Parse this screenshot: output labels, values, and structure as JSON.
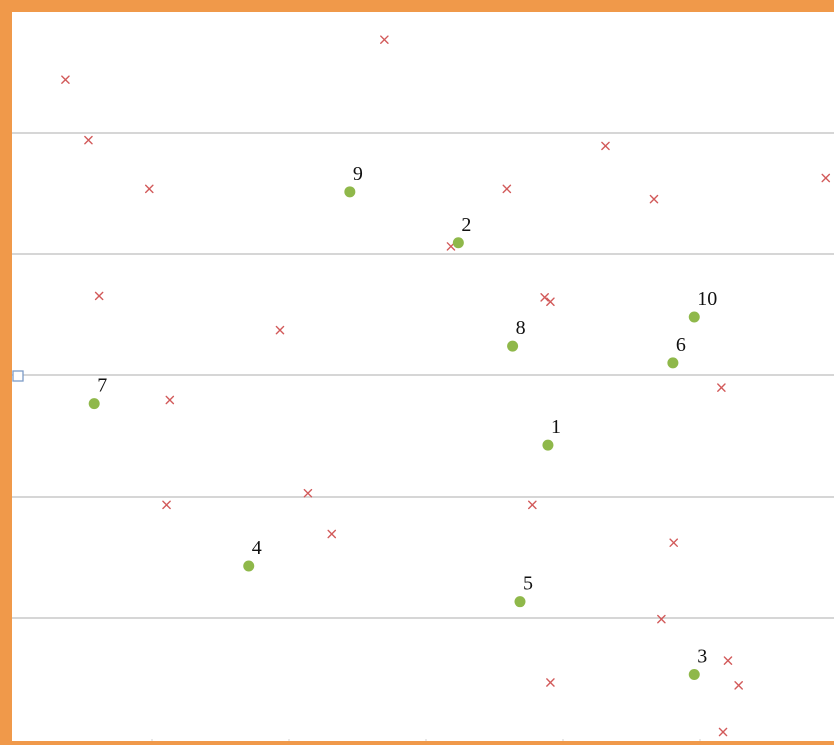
{
  "chart_data": {
    "type": "scatter",
    "title": "",
    "xlabel": "",
    "ylabel": "",
    "xlim": [
      0,
      100
    ],
    "ylim": [
      0,
      100
    ],
    "grid": true,
    "legend": "none",
    "colors": {
      "frame": "#f0994a",
      "grid": "#c9c9c9",
      "crosses": "#d25a5a",
      "points": "#8fb84a",
      "marker": "#7d9cc7"
    },
    "series": [
      {
        "marker": "circle",
        "points": [
          {
            "label": "1",
            "x": 65.2,
            "y": 40.5
          },
          {
            "label": "2",
            "x": 54.3,
            "y": 68.3
          },
          {
            "label": "3",
            "x": 83.0,
            "y": 9.0
          },
          {
            "label": "4",
            "x": 28.8,
            "y": 23.9
          },
          {
            "label": "5",
            "x": 61.8,
            "y": 19.0
          },
          {
            "label": "6",
            "x": 80.4,
            "y": 51.8
          },
          {
            "label": "7",
            "x": 10.0,
            "y": 46.2
          },
          {
            "label": "8",
            "x": 60.9,
            "y": 54.1
          },
          {
            "label": "9",
            "x": 41.1,
            "y": 75.3
          },
          {
            "label": "10",
            "x": 83.0,
            "y": 58.1
          }
        ]
      },
      {
        "marker": "x",
        "points": [
          {
            "x": 6.5,
            "y": 90.7
          },
          {
            "x": 9.3,
            "y": 82.4
          },
          {
            "x": 16.7,
            "y": 75.7
          },
          {
            "x": 45.3,
            "y": 96.2
          },
          {
            "x": 72.2,
            "y": 81.6
          },
          {
            "x": 60.2,
            "y": 75.7
          },
          {
            "x": 99.0,
            "y": 77.2
          },
          {
            "x": 78.1,
            "y": 74.3
          },
          {
            "x": 53.4,
            "y": 67.8
          },
          {
            "x": 10.6,
            "y": 61.0
          },
          {
            "x": 32.6,
            "y": 56.3
          },
          {
            "x": 64.8,
            "y": 60.8
          },
          {
            "x": 65.5,
            "y": 60.2
          },
          {
            "x": 86.3,
            "y": 48.4
          },
          {
            "x": 19.2,
            "y": 46.7
          },
          {
            "x": 36.0,
            "y": 33.9
          },
          {
            "x": 18.8,
            "y": 32.3
          },
          {
            "x": 63.3,
            "y": 32.3
          },
          {
            "x": 38.9,
            "y": 28.3
          },
          {
            "x": 80.5,
            "y": 27.1
          },
          {
            "x": 79.0,
            "y": 16.6
          },
          {
            "x": 87.1,
            "y": 10.9
          },
          {
            "x": 65.5,
            "y": 7.9
          },
          {
            "x": 88.4,
            "y": 7.5
          },
          {
            "x": 86.5,
            "y": 1.1
          }
        ]
      }
    ]
  }
}
